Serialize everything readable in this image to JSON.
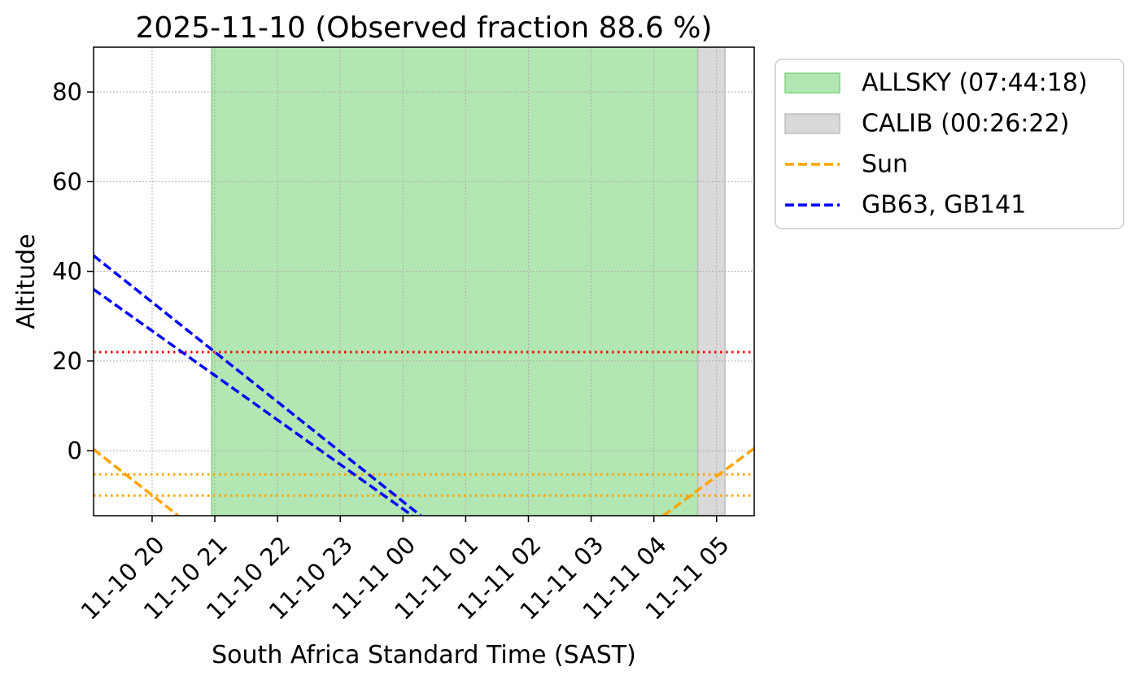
{
  "chart_data": {
    "type": "line",
    "title": "2025-11-10 (Observed fraction 88.6 %)",
    "xlabel": "South Africa Standard Time (SAST)",
    "ylabel": "Altitude",
    "xlim": [
      "2025-11-10 19:04",
      "2025-11-11 05:36"
    ],
    "ylim": [
      -14.5,
      90
    ],
    "grid": true,
    "legend_position": "outside-right-top",
    "x_tick_labels": [
      "11-10 20",
      "11-10 21",
      "11-10 22",
      "11-10 23",
      "11-11 00",
      "11-11 01",
      "11-11 02",
      "11-11 03",
      "11-11 04",
      "11-11 05"
    ],
    "x_ticks": [
      "2025-11-10 20:00",
      "2025-11-10 21:00",
      "2025-11-10 22:00",
      "2025-11-10 23:00",
      "2025-11-11 00:00",
      "2025-11-11 01:00",
      "2025-11-11 02:00",
      "2025-11-11 03:00",
      "2025-11-11 04:00",
      "2025-11-11 05:00"
    ],
    "y_ticks": [
      0,
      20,
      40,
      60,
      80
    ],
    "y_tick_labels": [
      "0",
      "20",
      "40",
      "60",
      "80"
    ],
    "shaded_regions": [
      {
        "name": "ALLSKY (07:44:18)",
        "start": "2025-11-10 20:57",
        "end": "2025-11-11 04:42",
        "color": "#b2e6b2",
        "edge_color": "#7fd47f"
      },
      {
        "name": "CALIB (00:26:22)",
        "start": "2025-11-11 04:42",
        "end": "2025-11-11 05:08",
        "color": "#d9d9d9",
        "edge_color": "#bdbdbd"
      }
    ],
    "series": [
      {
        "name": "Sun",
        "color": "#ffa500",
        "dash": "dashed",
        "segments": [
          {
            "x": [
              "2025-11-10 19:04",
              "2025-11-10 20:25"
            ],
            "y": [
              0.3,
              -14.5
            ]
          },
          {
            "x": [
              "2025-11-11 04:09",
              "2025-11-11 05:36"
            ],
            "y": [
              -14.5,
              0.5
            ]
          }
        ]
      },
      {
        "name": "GB63, GB141",
        "color": "#0000ff",
        "dash": "dashed",
        "segments": [
          {
            "x": [
              "2025-11-10 19:04",
              "2025-11-11 00:17"
            ],
            "y": [
              43.5,
              -14.5
            ]
          },
          {
            "x": [
              "2025-11-10 19:04",
              "2025-11-11 00:09"
            ],
            "y": [
              36,
              -14.5
            ]
          }
        ]
      }
    ],
    "reference_lines": [
      {
        "axis": "y",
        "value": 22,
        "color": "#ff0000",
        "dash": "dotted"
      },
      {
        "axis": "y",
        "value": -5.3,
        "color": "#ffa500",
        "dash": "dotted"
      },
      {
        "axis": "y",
        "value": -10,
        "color": "#ffa500",
        "dash": "dotted"
      }
    ],
    "legend": [
      {
        "label": "ALLSKY (07:44:18)",
        "kind": "patch",
        "color": "#b2e6b2",
        "edge_color": "#7fd47f"
      },
      {
        "label": "CALIB (00:26:22)",
        "kind": "patch",
        "color": "#d9d9d9",
        "edge_color": "#bdbdbd"
      },
      {
        "label": "Sun",
        "kind": "line",
        "color": "#ffa500",
        "dash": "dashed"
      },
      {
        "label": "GB63, GB141",
        "kind": "line",
        "color": "#0000ff",
        "dash": "dashed"
      }
    ]
  }
}
